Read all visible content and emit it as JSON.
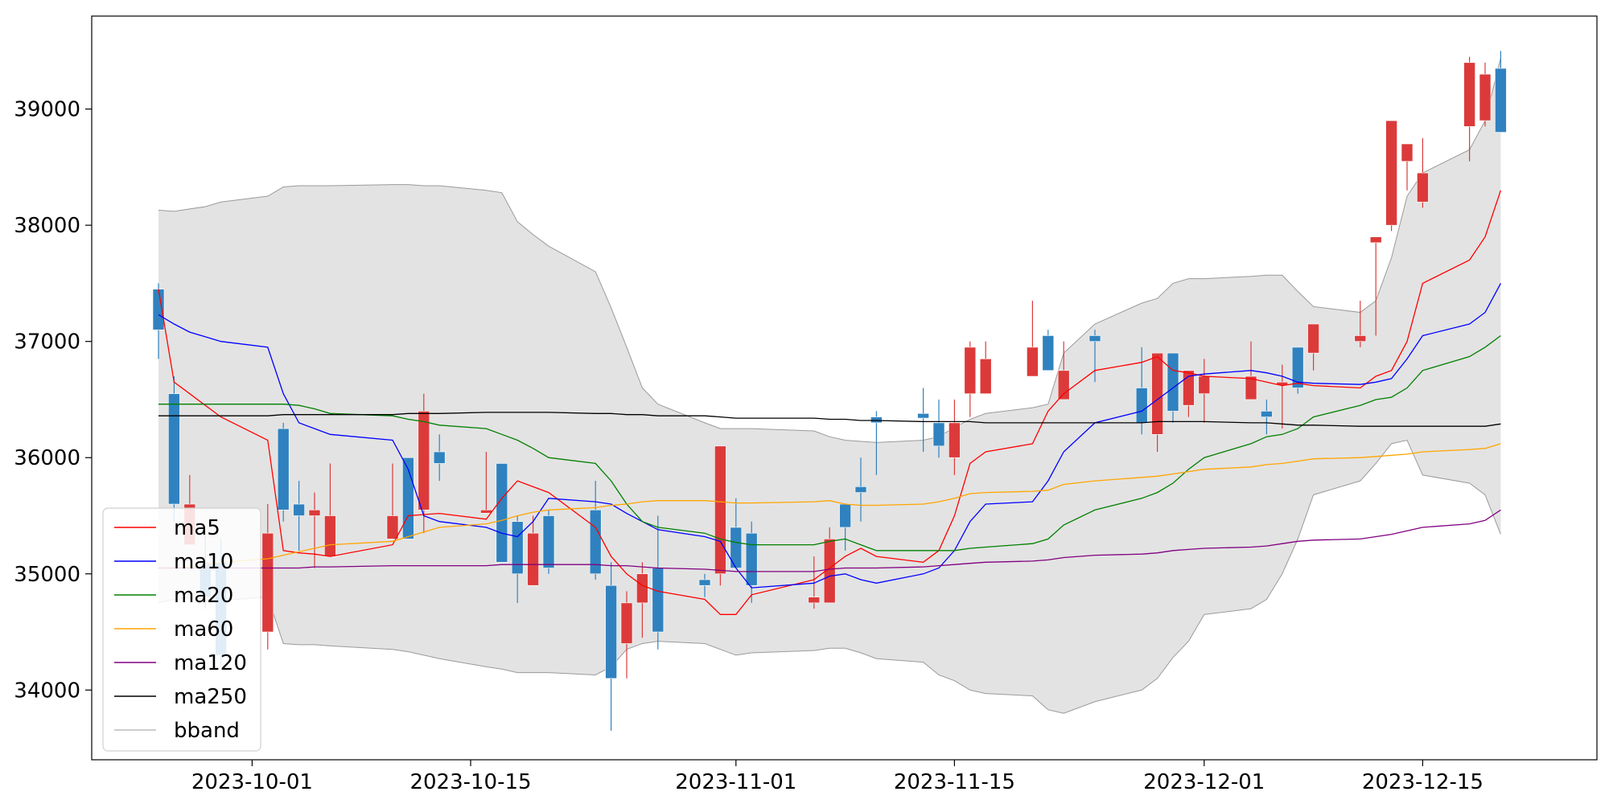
{
  "chart_data": {
    "type": "candlestick",
    "ylim": [
      33400,
      39800
    ],
    "y_ticks": [
      34000,
      35000,
      36000,
      37000,
      38000,
      39000
    ],
    "x_ticks": [
      "2023-10-01",
      "2023-10-15",
      "2023-11-01",
      "2023-11-15",
      "2023-12-01",
      "2023-12-15"
    ],
    "grid": false,
    "legend_position": "lower-left",
    "colors": {
      "up": "#dc3a3a",
      "down": "#2f82bf",
      "bband_fill": "#e3e3e3",
      "bband_line": "#9a9a9a"
    },
    "dates": [
      "2023-09-25",
      "2023-09-26",
      "2023-09-27",
      "2023-09-28",
      "2023-09-29",
      "2023-10-02",
      "2023-10-03",
      "2023-10-04",
      "2023-10-05",
      "2023-10-06",
      "2023-10-10",
      "2023-10-11",
      "2023-10-12",
      "2023-10-13",
      "2023-10-16",
      "2023-10-17",
      "2023-10-18",
      "2023-10-19",
      "2023-10-20",
      "2023-10-23",
      "2023-10-24",
      "2023-10-25",
      "2023-10-26",
      "2023-10-27",
      "2023-10-30",
      "2023-10-31",
      "2023-11-01",
      "2023-11-02",
      "2023-11-06",
      "2023-11-07",
      "2023-11-08",
      "2023-11-09",
      "2023-11-10",
      "2023-11-13",
      "2023-11-14",
      "2023-11-15",
      "2023-11-16",
      "2023-11-17",
      "2023-11-20",
      "2023-11-21",
      "2023-11-22",
      "2023-11-24",
      "2023-11-27",
      "2023-11-28",
      "2023-11-29",
      "2023-11-30",
      "2023-12-01",
      "2023-12-04",
      "2023-12-05",
      "2023-12-06",
      "2023-12-07",
      "2023-12-08",
      "2023-12-11",
      "2023-12-12",
      "2023-12-13",
      "2023-12-14",
      "2023-12-15",
      "2023-12-18",
      "2023-12-19",
      "2023-12-20"
    ],
    "ohlc": [
      [
        37450,
        37500,
        36850,
        37100
      ],
      [
        36550,
        36700,
        35450,
        35600
      ],
      [
        35250,
        35850,
        35250,
        35600
      ],
      [
        35100,
        35350,
        34700,
        34800
      ],
      [
        35100,
        35300,
        34200,
        34300
      ],
      [
        34500,
        35600,
        34350,
        35350
      ],
      [
        36250,
        36300,
        35450,
        35550
      ],
      [
        35600,
        35800,
        35200,
        35500
      ],
      [
        35500,
        35700,
        35050,
        35550
      ],
      [
        35150,
        35950,
        35150,
        35500
      ],
      [
        35300,
        35950,
        35300,
        35500
      ],
      [
        36000,
        36000,
        35300,
        35300
      ],
      [
        35550,
        36550,
        35350,
        36400
      ],
      [
        36050,
        36200,
        35800,
        35950
      ],
      [
        35550,
        36050,
        35550,
        35550
      ],
      [
        35950,
        35950,
        35100,
        35100
      ],
      [
        35450,
        35500,
        34750,
        35000
      ],
      [
        34900,
        35500,
        34900,
        35350
      ],
      [
        35500,
        35550,
        35000,
        35050
      ],
      [
        35550,
        35800,
        34950,
        35000
      ],
      [
        34900,
        35100,
        33650,
        34100
      ],
      [
        34400,
        34850,
        34100,
        34750
      ],
      [
        34750,
        35100,
        34450,
        35000
      ],
      [
        35050,
        35500,
        34350,
        34500
      ],
      [
        34950,
        35000,
        34800,
        34900
      ],
      [
        35000,
        36100,
        34900,
        36100
      ],
      [
        35400,
        35650,
        35050,
        35050
      ],
      [
        35350,
        35450,
        34750,
        34900
      ],
      [
        34750,
        35150,
        34700,
        34800
      ],
      [
        34750,
        35400,
        34750,
        35300
      ],
      [
        35600,
        35600,
        35200,
        35400
      ],
      [
        35750,
        36000,
        35450,
        35700
      ],
      [
        36350,
        36400,
        35850,
        36300
      ],
      [
        36380,
        36600,
        36050,
        36340
      ],
      [
        36300,
        36500,
        36000,
        36100
      ],
      [
        36000,
        36500,
        35850,
        36300
      ],
      [
        36550,
        37000,
        36350,
        36950
      ],
      [
        36550,
        37000,
        36550,
        36850
      ],
      [
        36700,
        37350,
        36700,
        36950
      ],
      [
        37050,
        37100,
        36750,
        36750
      ],
      [
        36500,
        37000,
        36500,
        36750
      ],
      [
        37050,
        37100,
        36650,
        37000
      ],
      [
        36600,
        36950,
        36200,
        36300
      ],
      [
        36200,
        36900,
        36050,
        36900
      ],
      [
        36900,
        36900,
        36300,
        36400
      ],
      [
        36450,
        36750,
        36350,
        36750
      ],
      [
        36550,
        36850,
        36300,
        36700
      ],
      [
        36500,
        37000,
        36500,
        36700
      ],
      [
        36400,
        36500,
        36200,
        36350
      ],
      [
        36650,
        36800,
        36250,
        36650
      ],
      [
        36950,
        36950,
        36550,
        36600
      ],
      [
        36900,
        37150,
        36750,
        37150
      ],
      [
        37000,
        37350,
        36950,
        37050
      ],
      [
        37850,
        37900,
        37050,
        37900
      ],
      [
        38000,
        38900,
        37950,
        38900
      ],
      [
        38550,
        38700,
        38300,
        38700
      ],
      [
        38200,
        38750,
        38150,
        38450
      ],
      [
        38850,
        39450,
        38550,
        39400
      ],
      [
        38900,
        39400,
        38850,
        39300
      ],
      [
        39350,
        39500,
        38800,
        38800
      ]
    ],
    "series": [
      {
        "name": "ma5",
        "color": "#ff0000",
        "values": [
          37450,
          36650,
          36550,
          36450,
          36350,
          36150,
          35200,
          35180,
          35170,
          35150,
          35250,
          35500,
          35510,
          35520,
          35470,
          35650,
          35800,
          35750,
          35700,
          35400,
          35150,
          35000,
          34900,
          34850,
          34780,
          34650,
          34650,
          34820,
          34950,
          35050,
          35150,
          35220,
          35150,
          35100,
          35200,
          35500,
          35950,
          36050,
          36120,
          36400,
          36550,
          36750,
          36820,
          36870,
          36750,
          36730,
          36700,
          36680,
          36650,
          36620,
          36640,
          36620,
          36600,
          36700,
          36750,
          37000,
          37500,
          37700,
          37900,
          38300
        ]
      },
      {
        "name": "ma10",
        "color": "#0000ff",
        "values": [
          37230,
          37150,
          37080,
          37040,
          37000,
          36950,
          36550,
          36300,
          36250,
          36200,
          36150,
          35900,
          35500,
          35450,
          35400,
          35350,
          35320,
          35450,
          35650,
          35620,
          35600,
          35520,
          35450,
          35380,
          35320,
          35280,
          35050,
          34880,
          34920,
          34980,
          35000,
          34950,
          34920,
          35000,
          35050,
          35200,
          35450,
          35600,
          35620,
          35800,
          36050,
          36300,
          36400,
          36500,
          36600,
          36700,
          36720,
          36750,
          36730,
          36700,
          36650,
          36640,
          36630,
          36650,
          36680,
          36850,
          37050,
          37150,
          37250,
          37500
        ]
      },
      {
        "name": "ma20",
        "color": "#008000",
        "values": [
          36460,
          36460,
          36460,
          36460,
          36460,
          36460,
          36460,
          36450,
          36420,
          36380,
          36360,
          36330,
          36310,
          36280,
          36250,
          36200,
          36150,
          36080,
          36000,
          35950,
          35800,
          35600,
          35450,
          35400,
          35350,
          35300,
          35270,
          35250,
          35250,
          35280,
          35300,
          35250,
          35200,
          35200,
          35200,
          35200,
          35220,
          35230,
          35260,
          35300,
          35420,
          35550,
          35650,
          35700,
          35780,
          35900,
          36000,
          36120,
          36180,
          36200,
          36250,
          36350,
          36450,
          36500,
          36520,
          36600,
          36750,
          36870,
          36950,
          37050
        ]
      },
      {
        "name": "ma60",
        "color": "#ffa500",
        "values": [
          35050,
          35050,
          35060,
          35080,
          35100,
          35130,
          35160,
          35190,
          35220,
          35250,
          35280,
          35320,
          35360,
          35400,
          35430,
          35460,
          35500,
          35530,
          35550,
          35570,
          35590,
          35600,
          35620,
          35630,
          35630,
          35620,
          35610,
          35610,
          35620,
          35630,
          35600,
          35590,
          35590,
          35600,
          35620,
          35650,
          35690,
          35700,
          35710,
          35720,
          35770,
          35800,
          35830,
          35840,
          35860,
          35880,
          35900,
          35920,
          35940,
          35950,
          35970,
          35990,
          36000,
          36010,
          36020,
          36030,
          36050,
          36070,
          36080,
          36120
        ]
      },
      {
        "name": "ma120",
        "color": "#800080",
        "values": [
          35050,
          35050,
          35050,
          35050,
          35050,
          35050,
          35050,
          35050,
          35060,
          35060,
          35070,
          35070,
          35070,
          35070,
          35070,
          35080,
          35080,
          35080,
          35080,
          35080,
          35070,
          35070,
          35060,
          35050,
          35040,
          35030,
          35020,
          35020,
          35020,
          35040,
          35050,
          35050,
          35050,
          35060,
          35070,
          35080,
          35090,
          35100,
          35110,
          35120,
          35140,
          35160,
          35170,
          35180,
          35200,
          35210,
          35220,
          35230,
          35240,
          35260,
          35280,
          35290,
          35300,
          35320,
          35340,
          35370,
          35400,
          35430,
          35460,
          35550
        ]
      },
      {
        "name": "ma250",
        "color": "#000000",
        "values": [
          36360,
          36360,
          36360,
          36360,
          36360,
          36360,
          36370,
          36370,
          36370,
          36370,
          36370,
          36380,
          36380,
          36380,
          36390,
          36390,
          36390,
          36390,
          36390,
          36380,
          36380,
          36370,
          36370,
          36360,
          36360,
          36350,
          36340,
          36340,
          36340,
          36330,
          36330,
          36320,
          36320,
          36310,
          36310,
          36310,
          36310,
          36300,
          36300,
          36300,
          36300,
          36300,
          36300,
          36310,
          36310,
          36310,
          36310,
          36300,
          36300,
          36290,
          36280,
          36280,
          36270,
          36270,
          36270,
          36270,
          36270,
          36270,
          36270,
          36290
        ]
      },
      {
        "name": "bband",
        "color": "#9a9a9a",
        "upper": [
          38130,
          38120,
          38140,
          38160,
          38200,
          38250,
          38330,
          38340,
          38340,
          38340,
          38350,
          38350,
          38340,
          38340,
          38300,
          38280,
          38030,
          37920,
          37820,
          37600,
          37290,
          36950,
          36600,
          36460,
          36300,
          36250,
          36250,
          36250,
          36230,
          36180,
          36150,
          36140,
          36130,
          36150,
          36180,
          36260,
          36330,
          36380,
          36430,
          36460,
          36900,
          37150,
          37330,
          37370,
          37500,
          37540,
          37540,
          37560,
          37570,
          37570,
          37430,
          37300,
          37250,
          37350,
          37720,
          38250,
          38450,
          38650,
          38900,
          39440
        ],
        "lower": [
          34750,
          34780,
          34800,
          34780,
          34770,
          34800,
          34400,
          34390,
          34390,
          34380,
          34350,
          34330,
          34300,
          34270,
          34200,
          34180,
          34150,
          34150,
          34150,
          34130,
          34200,
          34350,
          34400,
          34420,
          34400,
          34350,
          34300,
          34320,
          34340,
          34360,
          34360,
          34320,
          34270,
          34240,
          34130,
          34080,
          34000,
          33970,
          33950,
          33830,
          33800,
          33900,
          34000,
          34100,
          34280,
          34420,
          34650,
          34700,
          34780,
          35000,
          35300,
          35680,
          35800,
          35950,
          36120,
          36150,
          35850,
          35780,
          35680,
          35340
        ]
      }
    ]
  }
}
